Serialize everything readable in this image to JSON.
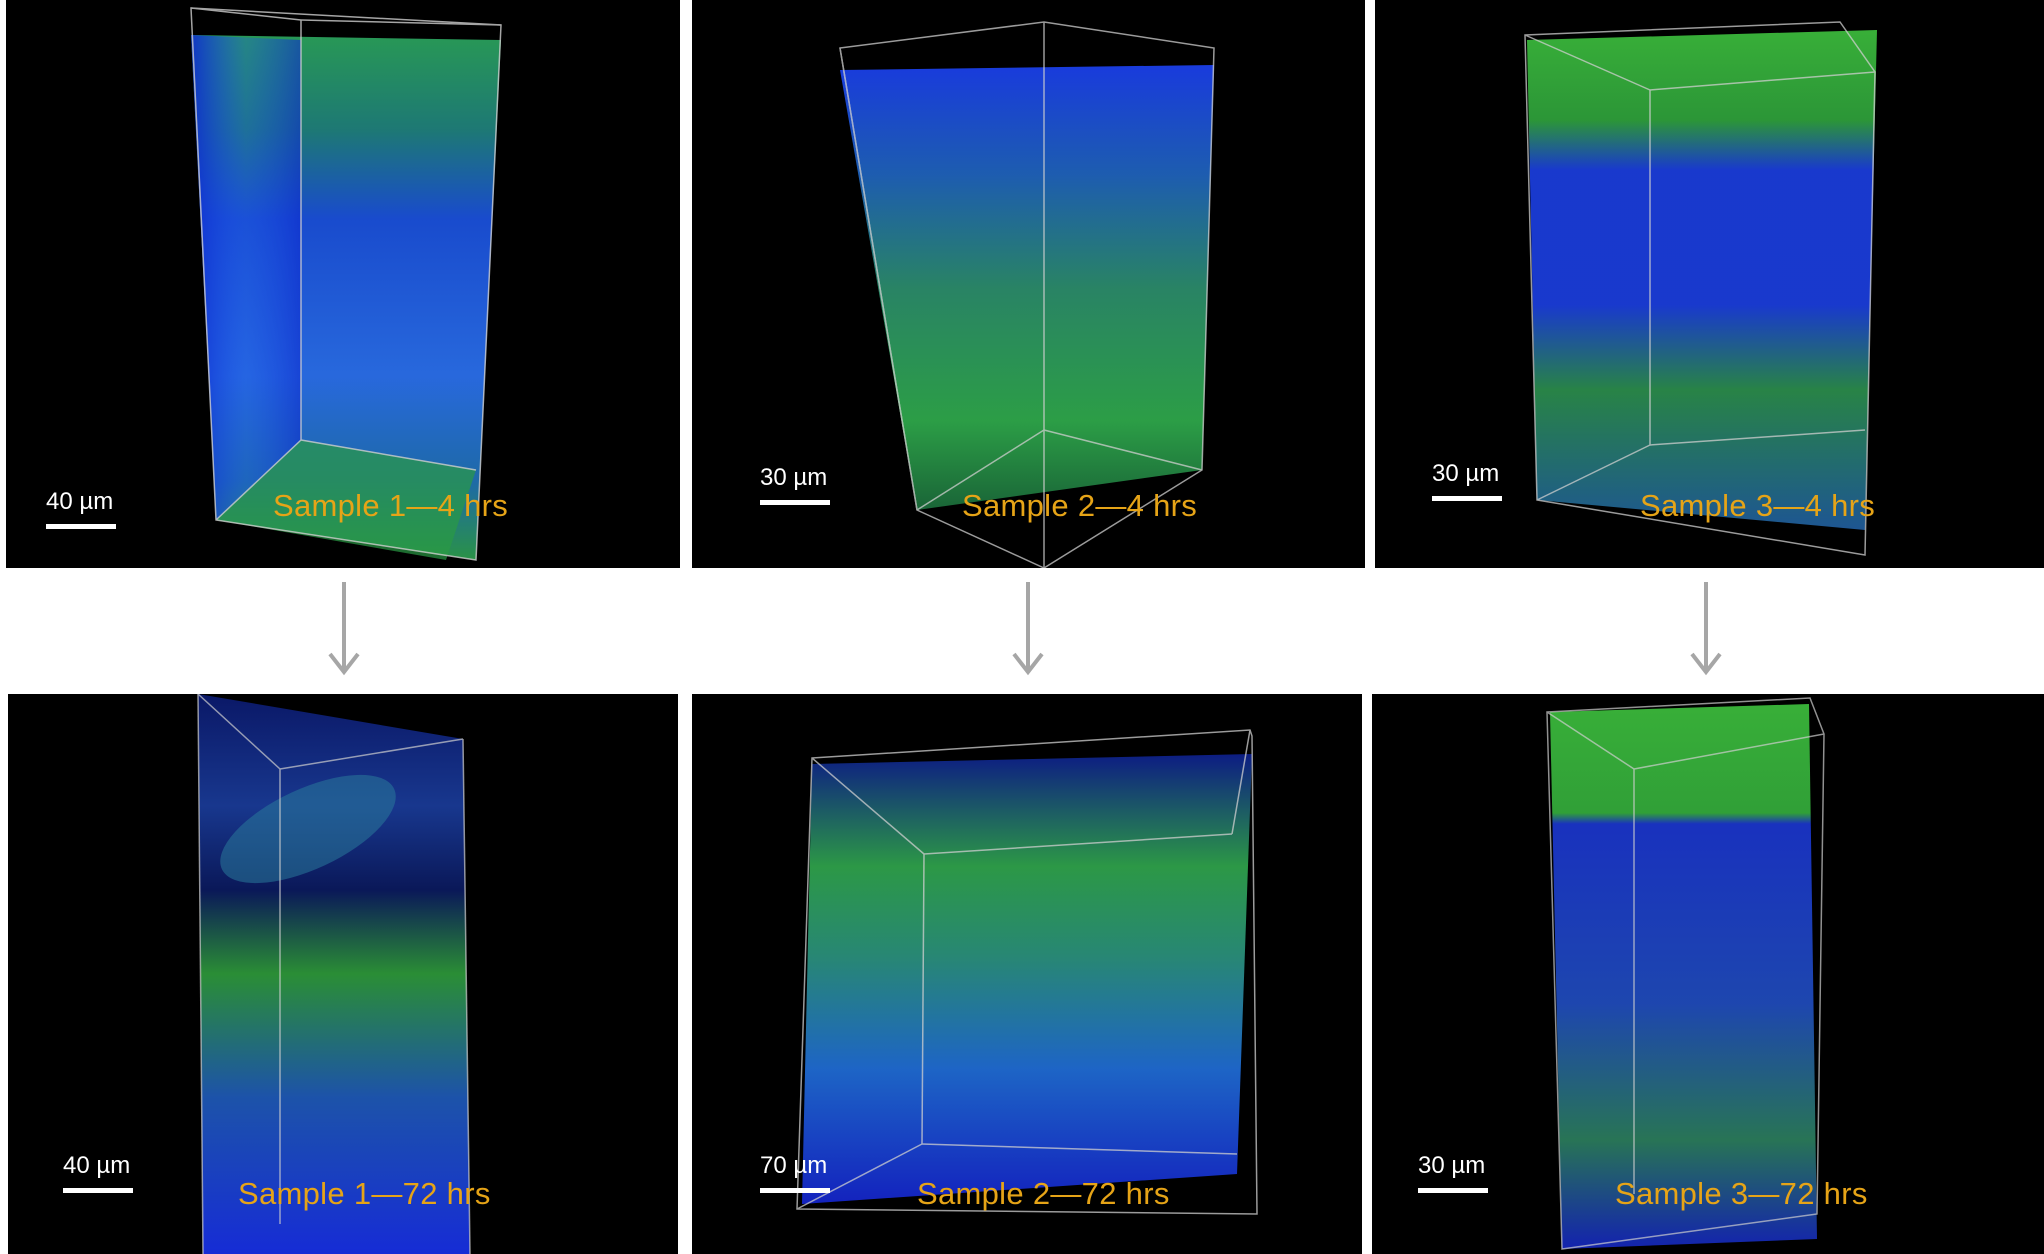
{
  "panels": [
    {
      "id": "s1-4h",
      "label": "Sample 1—4 hrs",
      "scale": "40 µm",
      "time": "4 hrs",
      "sample": "Sample 1"
    },
    {
      "id": "s2-4h",
      "label": "Sample 2—4 hrs",
      "scale": "30 µm",
      "time": "4 hrs",
      "sample": "Sample 2"
    },
    {
      "id": "s3-4h",
      "label": "Sample 3—4 hrs",
      "scale": "30 µm",
      "time": "4 hrs",
      "sample": "Sample 3"
    },
    {
      "id": "s1-72h",
      "label": "Sample 1—72 hrs",
      "scale": "40 µm",
      "time": "72 hrs",
      "sample": "Sample 1"
    },
    {
      "id": "s2-72h",
      "label": "Sample 2—72 hrs",
      "scale": "70 µm",
      "time": "72 hrs",
      "sample": "Sample 2"
    },
    {
      "id": "s3-72h",
      "label": "Sample 3—72 hrs",
      "scale": "30 µm",
      "time": "72 hrs",
      "sample": "Sample 3"
    }
  ],
  "colors": {
    "background": "#000000",
    "label": "#e6a417",
    "scalebar": "#ffffff",
    "arrow": "#a6a6a6",
    "blue_stain": "#1a3cff",
    "green_stain": "#2fb52f"
  }
}
